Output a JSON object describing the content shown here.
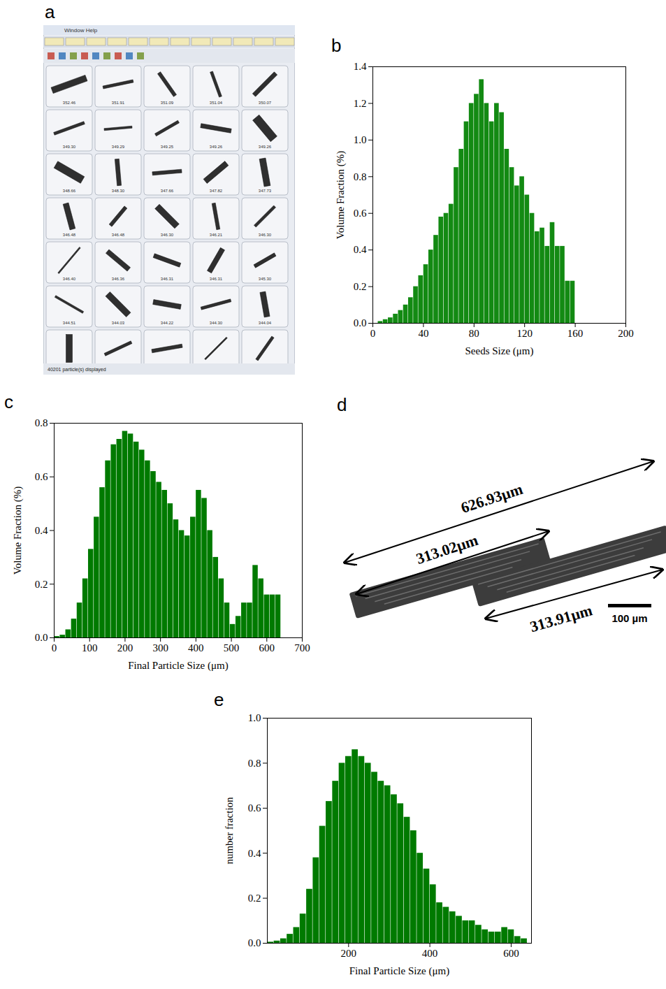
{
  "chart_data": [
    {
      "panel": "b",
      "type": "histogram",
      "x_label": "Seeds Size (μm)",
      "y_label": "Volume Fraction (%)",
      "color": "#138a13",
      "bins": [
        0,
        4,
        8,
        12,
        16,
        20,
        24,
        28,
        32,
        36,
        40,
        44,
        48,
        52,
        56,
        60,
        64,
        68,
        72,
        76,
        80,
        84,
        88,
        92,
        96,
        100,
        104,
        108,
        112,
        116,
        120,
        124,
        128,
        132,
        136,
        140,
        144,
        148,
        152,
        156,
        160
      ],
      "values": [
        0,
        0.01,
        0.02,
        0.03,
        0.05,
        0.07,
        0.1,
        0.14,
        0.2,
        0.26,
        0.32,
        0.4,
        0.48,
        0.58,
        0.6,
        0.65,
        0.85,
        0.95,
        1.1,
        1.2,
        1.25,
        1.33,
        1.2,
        1.1,
        1.2,
        1.15,
        0.95,
        0.85,
        0.75,
        0.8,
        0.7,
        0.6,
        0.5,
        0.52,
        0.42,
        0.55,
        0.42,
        0.42,
        0.23,
        0.23
      ],
      "xlim": [
        0,
        200
      ],
      "xticks": [
        0,
        40,
        80,
        120,
        160,
        200
      ],
      "ylim": [
        0,
        1.4
      ],
      "yticks": [
        {
          "value": 0,
          "label": "0.0"
        },
        0.2,
        0.4,
        0.6,
        0.8,
        {
          "value": 1,
          "label": "1.0"
        },
        1.2,
        1.4
      ]
    },
    {
      "panel": "c",
      "type": "histogram",
      "x_label": "Final Particle Size (μm)",
      "y_label": "Volume Fraction (%)",
      "color": "#007a00",
      "bins": [
        0,
        16,
        32,
        48,
        64,
        80,
        96,
        112,
        128,
        144,
        160,
        176,
        192,
        208,
        224,
        240,
        256,
        272,
        288,
        304,
        320,
        336,
        352,
        368,
        384,
        400,
        416,
        432,
        448,
        464,
        480,
        496,
        512,
        528,
        544,
        560,
        576,
        592,
        608,
        624,
        640
      ],
      "values": [
        0.005,
        0.01,
        0.03,
        0.07,
        0.13,
        0.22,
        0.33,
        0.45,
        0.56,
        0.66,
        0.72,
        0.74,
        0.77,
        0.76,
        0.73,
        0.7,
        0.66,
        0.62,
        0.58,
        0.55,
        0.5,
        0.44,
        0.4,
        0.38,
        0.45,
        0.55,
        0.52,
        0.4,
        0.3,
        0.22,
        0.13,
        0.05,
        0.08,
        0.13,
        0.13,
        0.27,
        0.22,
        0.16,
        0.16,
        0.16
      ],
      "xlim": [
        0,
        700
      ],
      "xticks": [
        0,
        100,
        200,
        300,
        400,
        500,
        600,
        700
      ],
      "ylim": [
        0,
        0.8
      ],
      "yticks": [
        {
          "value": 0,
          "label": "0.0"
        },
        0.2,
        0.4,
        0.6,
        0.8
      ]
    },
    {
      "panel": "e",
      "type": "histogram",
      "x_label": "Final Particle Size (μm)",
      "y_label": "number fraction",
      "color": "#007a00",
      "bins": [
        0,
        16,
        32,
        48,
        64,
        80,
        96,
        112,
        128,
        144,
        160,
        176,
        192,
        208,
        224,
        240,
        256,
        272,
        288,
        304,
        320,
        336,
        352,
        368,
        384,
        400,
        416,
        432,
        448,
        464,
        480,
        496,
        512,
        528,
        544,
        560,
        576,
        592,
        608,
        624,
        640
      ],
      "values": [
        0.005,
        0.01,
        0.02,
        0.04,
        0.07,
        0.13,
        0.24,
        0.38,
        0.52,
        0.63,
        0.72,
        0.8,
        0.83,
        0.86,
        0.83,
        0.8,
        0.76,
        0.72,
        0.7,
        0.66,
        0.62,
        0.56,
        0.5,
        0.4,
        0.33,
        0.26,
        0.18,
        0.16,
        0.14,
        0.12,
        0.1,
        0.1,
        0.08,
        0.06,
        0.05,
        0.05,
        0.07,
        0.06,
        0.03,
        0.02
      ],
      "xlim": [
        0,
        650
      ],
      "xticks": [
        200,
        400,
        600
      ],
      "ylim": [
        0,
        1
      ],
      "yticks": [
        {
          "value": 0,
          "label": "0.0"
        },
        0.2,
        0.4,
        0.6,
        0.8,
        {
          "value": 1,
          "label": "1.0"
        }
      ]
    }
  ],
  "panel_a": {
    "panel": "a",
    "menu": [
      "Window",
      "Help"
    ],
    "particle_labels": [
      "352.46",
      "351.91",
      "351.09",
      "351.04",
      "350.07",
      "349.30",
      "349.29",
      "349.25",
      "349.26",
      "349.26",
      "348.66",
      "348.30",
      "347.66",
      "347.82",
      "347.73",
      "346.48",
      "346.48",
      "346.30",
      "346.21",
      "346.30",
      "346.40",
      "346.36",
      "346.31",
      "346.31",
      "345.30",
      "344.51",
      "344.03",
      "344.22",
      "344.30",
      "344.04"
    ],
    "status": "40201 particle(s) displayed"
  },
  "panel_d": {
    "panel": "d",
    "measurements": [
      "626.93µm",
      "313.02µm",
      "313.91µm"
    ],
    "scale_bar": "100 µm"
  }
}
